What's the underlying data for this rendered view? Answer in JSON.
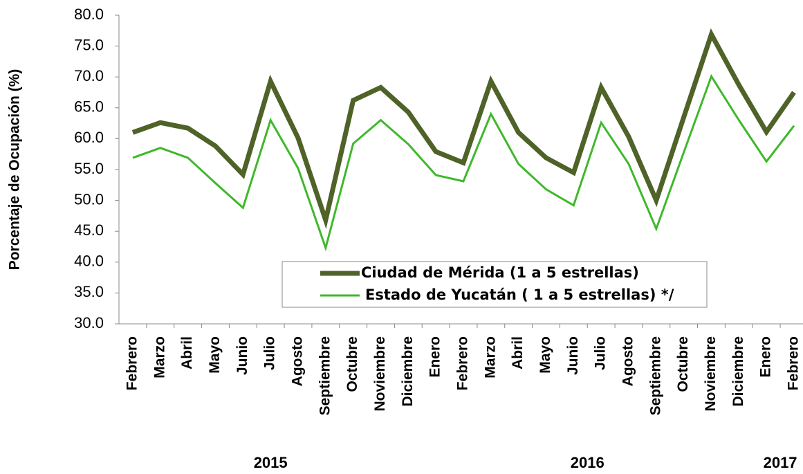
{
  "chart_data": {
    "type": "line",
    "y_label": "Porcentaje de Ocupación (%)",
    "categories": [
      "Febrero",
      "Marzo",
      "Abril",
      "Mayo",
      "Junio",
      "Julio",
      "Agosto",
      "Septiembre",
      "Octubre",
      "Noviembre",
      "Diciembre",
      "Enero",
      "Febrero",
      "Marzo",
      "Abril",
      "Mayo",
      "Junio",
      "Julio",
      "Agosto",
      "Septiembre",
      "Octubre",
      "Noviembre",
      "Diciembre",
      "Enero",
      "Febrero"
    ],
    "years": [
      "2015",
      "2016",
      "2017"
    ],
    "series": [
      {
        "name": "Ciudad de Mérida (1 a 5 estrellas)",
        "color": "#4f6228",
        "values": [
          61.0,
          62.6,
          61.7,
          58.8,
          54.2,
          69.3,
          60.1,
          46.8,
          66.2,
          68.3,
          64.3,
          57.9,
          56.1,
          69.3,
          61.0,
          56.9,
          54.5,
          68.3,
          60.3,
          50.0,
          63.5,
          76.9,
          68.7,
          61.1,
          67.5
        ]
      },
      {
        "name": "Estado de Yucatán ( 1 a 5 estrellas) */",
        "color": "#3fb82b",
        "values": [
          56.9,
          58.5,
          56.9,
          52.8,
          48.8,
          63.0,
          55.2,
          42.3,
          59.2,
          63.0,
          59.1,
          54.1,
          53.1,
          64.0,
          55.9,
          51.8,
          49.2,
          62.6,
          55.9,
          45.4,
          57.8,
          70.1,
          63.0,
          56.3,
          62.1
        ]
      }
    ],
    "ylim": [
      30,
      80
    ],
    "yticks": [
      {
        "value": 30,
        "label": "30.0"
      },
      {
        "value": 35,
        "label": "35.0"
      },
      {
        "value": 40,
        "label": "40.0"
      },
      {
        "value": 45,
        "label": "45.0"
      },
      {
        "value": 50,
        "label": "50.0"
      },
      {
        "value": 55,
        "label": "55.0"
      },
      {
        "value": 60,
        "label": "60.0"
      },
      {
        "value": 65,
        "label": "65.0"
      },
      {
        "value": 70,
        "label": "70.0"
      },
      {
        "value": 75,
        "label": "75.0"
      },
      {
        "value": 80,
        "label": "80.0"
      }
    ],
    "grid": false,
    "legend": "lower center"
  }
}
